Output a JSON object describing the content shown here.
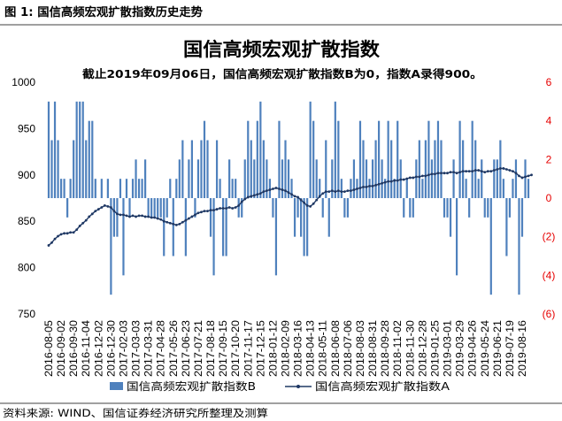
{
  "figure": {
    "caption": "图 1: 国信高频宏观扩散指数历史走势",
    "source": "资料来源: WIND、国信证券经济研究所整理及测算"
  },
  "chart_data": {
    "type": "line",
    "title": "国信高频宏观扩散指数",
    "subtitle": "截止2019年09月06日，国信高频宏观扩散指数B为0，指数A录得900。",
    "x_tick_labels": [
      "2016-08-05",
      "2016-09-02",
      "2016-09-30",
      "2016-11-04",
      "2016-12-02",
      "2016-12-30",
      "2017-02-03",
      "2017-03-03",
      "2017-03-31",
      "2017-04-28",
      "2017-05-26",
      "2017-06-23",
      "2017-07-21",
      "2017-08-18",
      "2017-09-15",
      "2017-10-20",
      "2017-11-17",
      "2017-12-15",
      "2018-01-12",
      "2018-02-09",
      "2018-03-16",
      "2018-04-13",
      "2018-05-11",
      "2018-06-08",
      "2018-07-06",
      "2018-08-03",
      "2018-08-31",
      "2018-09-28",
      "2018-11-02",
      "2018-11-30",
      "2018-12-28",
      "2019-01-25",
      "2019-03-01",
      "2019-03-29",
      "2019-04-26",
      "2019-05-24",
      "2019-06-21",
      "2019-07-19",
      "2019-08-16"
    ],
    "ylim_left": [
      750,
      1000
    ],
    "yticks_left": [
      1000,
      950,
      900,
      850,
      800,
      750
    ],
    "ylim_right": [
      -6,
      6
    ],
    "yticks_right": [
      6,
      4,
      2,
      0,
      -2,
      -4,
      -6
    ],
    "ytick_labels_right": [
      "6",
      "4",
      "2",
      "0",
      "(2)",
      "(4)",
      "(6)"
    ],
    "right_axis_color": "#E60000",
    "grid": false,
    "legend_position": "bottom",
    "series": [
      {
        "name": "国信高频宏观扩散指数B",
        "type": "bar",
        "axis": "right",
        "color": "#4F81BD",
        "values": [
          5,
          3,
          5,
          3,
          1,
          1,
          -1,
          1,
          3,
          5,
          5,
          5,
          3,
          4,
          4,
          1,
          0,
          1,
          0,
          1,
          -5,
          -2,
          -2,
          1,
          -4,
          1,
          -1,
          1,
          2,
          1,
          1,
          2,
          -1,
          -1,
          -1,
          -1,
          -1,
          -3,
          -1,
          1,
          -3,
          1,
          2,
          3,
          -3,
          2,
          3,
          -1,
          2,
          3,
          4,
          3,
          -2,
          -4,
          3,
          1,
          -3,
          -3,
          2,
          1,
          1,
          -1,
          -1,
          2,
          4,
          3,
          2,
          4,
          5,
          3,
          2,
          1,
          -1,
          -4,
          4,
          2,
          3,
          2,
          1,
          -2,
          -1,
          -2,
          -3,
          -3,
          5,
          4,
          2,
          1,
          -1,
          3,
          -2,
          2,
          5,
          4,
          1,
          -1,
          -1,
          1,
          2,
          1,
          4,
          3,
          2,
          1,
          2,
          3,
          4,
          2,
          1,
          4,
          3,
          1,
          4,
          2,
          -1,
          1,
          -1,
          -1,
          2,
          3,
          1,
          3,
          4,
          2,
          3,
          4,
          3,
          -1,
          -1,
          -2,
          2,
          -4,
          4,
          3,
          1,
          -1,
          4,
          3,
          1,
          2,
          -1,
          -1,
          -5,
          2,
          2,
          3,
          1,
          -3,
          -1,
          1,
          2,
          -5,
          -2,
          2,
          1,
          0
        ]
      },
      {
        "name": "国信高频宏观扩散指数A",
        "type": "line",
        "axis": "left",
        "color": "#1F3864",
        "values": [
          824,
          827,
          831,
          834,
          836,
          837,
          837,
          838,
          838,
          841,
          845,
          848,
          851,
          855,
          858,
          861,
          863,
          865,
          867,
          866,
          865,
          861,
          858,
          857,
          857,
          856,
          855,
          856,
          855,
          856,
          856,
          855,
          855,
          854,
          854,
          853,
          852,
          850,
          849,
          848,
          847,
          846,
          847,
          849,
          851,
          853,
          855,
          857,
          859,
          860,
          861,
          861,
          862,
          862,
          863,
          864,
          864,
          864,
          865,
          864,
          865,
          867,
          871,
          874,
          876,
          877,
          878,
          879,
          880,
          882,
          883,
          884,
          885,
          886,
          885,
          884,
          883,
          881,
          879,
          877,
          876,
          873,
          870,
          867,
          866,
          869,
          873,
          877,
          880,
          882,
          882,
          883,
          882,
          883,
          882,
          882,
          883,
          883,
          884,
          885,
          886,
          887,
          887,
          888,
          888,
          889,
          890,
          891,
          892,
          893,
          893,
          894,
          894,
          895,
          895,
          896,
          897,
          897,
          898,
          898,
          899,
          899,
          900,
          901,
          901,
          902,
          902,
          902,
          902,
          903,
          903,
          902,
          903,
          904,
          904,
          904,
          904,
          905,
          905,
          904,
          903,
          904,
          904,
          905,
          906,
          907,
          907,
          906,
          905,
          904,
          902,
          899,
          897,
          898,
          899,
          900
        ]
      }
    ]
  }
}
